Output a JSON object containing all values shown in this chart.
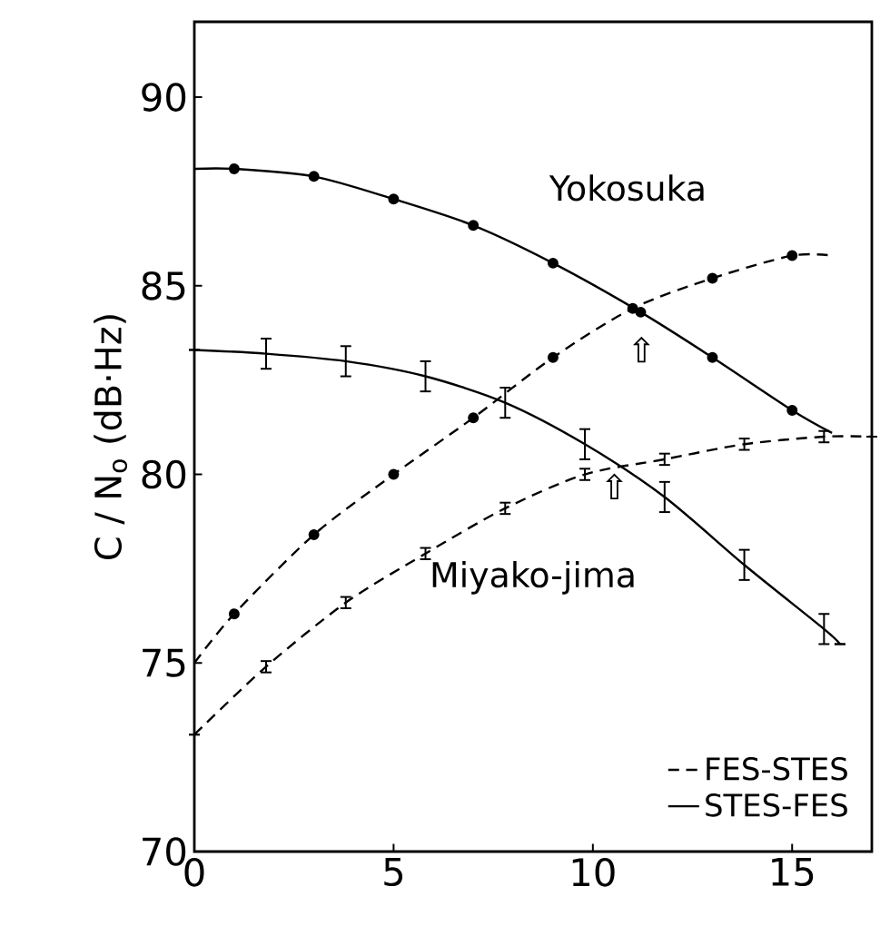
{
  "chart_data": {
    "type": "line",
    "ylabel": "C / N$_{o}$ (dB·Hz)",
    "xlim": [
      0,
      17
    ],
    "ylim": [
      70,
      92
    ],
    "xticks": [
      0,
      5,
      10,
      15
    ],
    "yticks": [
      70,
      75,
      80,
      85,
      90
    ],
    "grid": false,
    "legend": "bottom right",
    "series": [
      {
        "type": "line",
        "name": "FES-STES",
        "color": "#000000",
        "line_style": "dashed",
        "marker": "none",
        "x": [
          0,
          1,
          3,
          5,
          7,
          9,
          11,
          13,
          15,
          16
        ],
        "values": [
          75.0,
          76.3,
          78.4,
          80.0,
          81.5,
          83.1,
          84.4,
          85.2,
          85.8,
          85.8
        ]
      },
      {
        "type": "line",
        "name": "STES-FES",
        "color": "#000000",
        "line_style": "solid",
        "marker": "none",
        "x": [
          0,
          1,
          3,
          5,
          7,
          9,
          11.2,
          13,
          15,
          16
        ],
        "values": [
          88.1,
          88.1,
          87.9,
          87.3,
          86.6,
          85.6,
          84.3,
          83.1,
          81.7,
          81.1
        ]
      },
      {
        "type": "line",
        "color": "#000000",
        "line_style": "dashed",
        "marker": "none",
        "x": [
          0,
          1.8,
          3.8,
          5.8,
          7.8,
          9.8,
          11.8,
          13.8,
          15.8,
          17
        ],
        "values": [
          73.1,
          74.9,
          76.6,
          77.9,
          79.1,
          80.0,
          80.4,
          80.8,
          81.0,
          81.0
        ],
        "errors": [
          null,
          0.15,
          0.15,
          0.15,
          0.15,
          0.15,
          0.15,
          0.15,
          0.15,
          null
        ]
      },
      {
        "type": "line",
        "color": "#000000",
        "line_style": "solid",
        "marker": "none",
        "x": [
          0,
          1.8,
          3.8,
          5.8,
          7.8,
          9.8,
          11.8,
          13.8,
          15.8,
          16.2
        ],
        "values": [
          83.3,
          83.2,
          83.0,
          82.6,
          81.9,
          80.8,
          79.4,
          77.6,
          75.9,
          75.5
        ],
        "errors": [
          null,
          0.4,
          0.4,
          0.4,
          0.4,
          0.4,
          0.4,
          0.4,
          0.4,
          null
        ]
      },
      {
        "type": "scatter",
        "color": "#000000",
        "marker": "circle",
        "x": [
          1,
          3,
          5,
          7,
          9,
          11.2,
          13,
          15
        ],
        "values": [
          88.1,
          87.9,
          87.3,
          86.6,
          85.6,
          84.3,
          83.1,
          81.7
        ]
      },
      {
        "type": "scatter",
        "color": "#000000",
        "marker": "circle",
        "x": [
          1,
          3,
          5,
          7,
          9,
          11,
          13,
          15
        ],
        "values": [
          76.3,
          78.4,
          80.0,
          81.5,
          83.1,
          84.4,
          85.2,
          85.8
        ]
      }
    ],
    "annotations": [
      "Yokosuka",
      "Miyako-jima",
      "⇧",
      "⇧"
    ]
  }
}
